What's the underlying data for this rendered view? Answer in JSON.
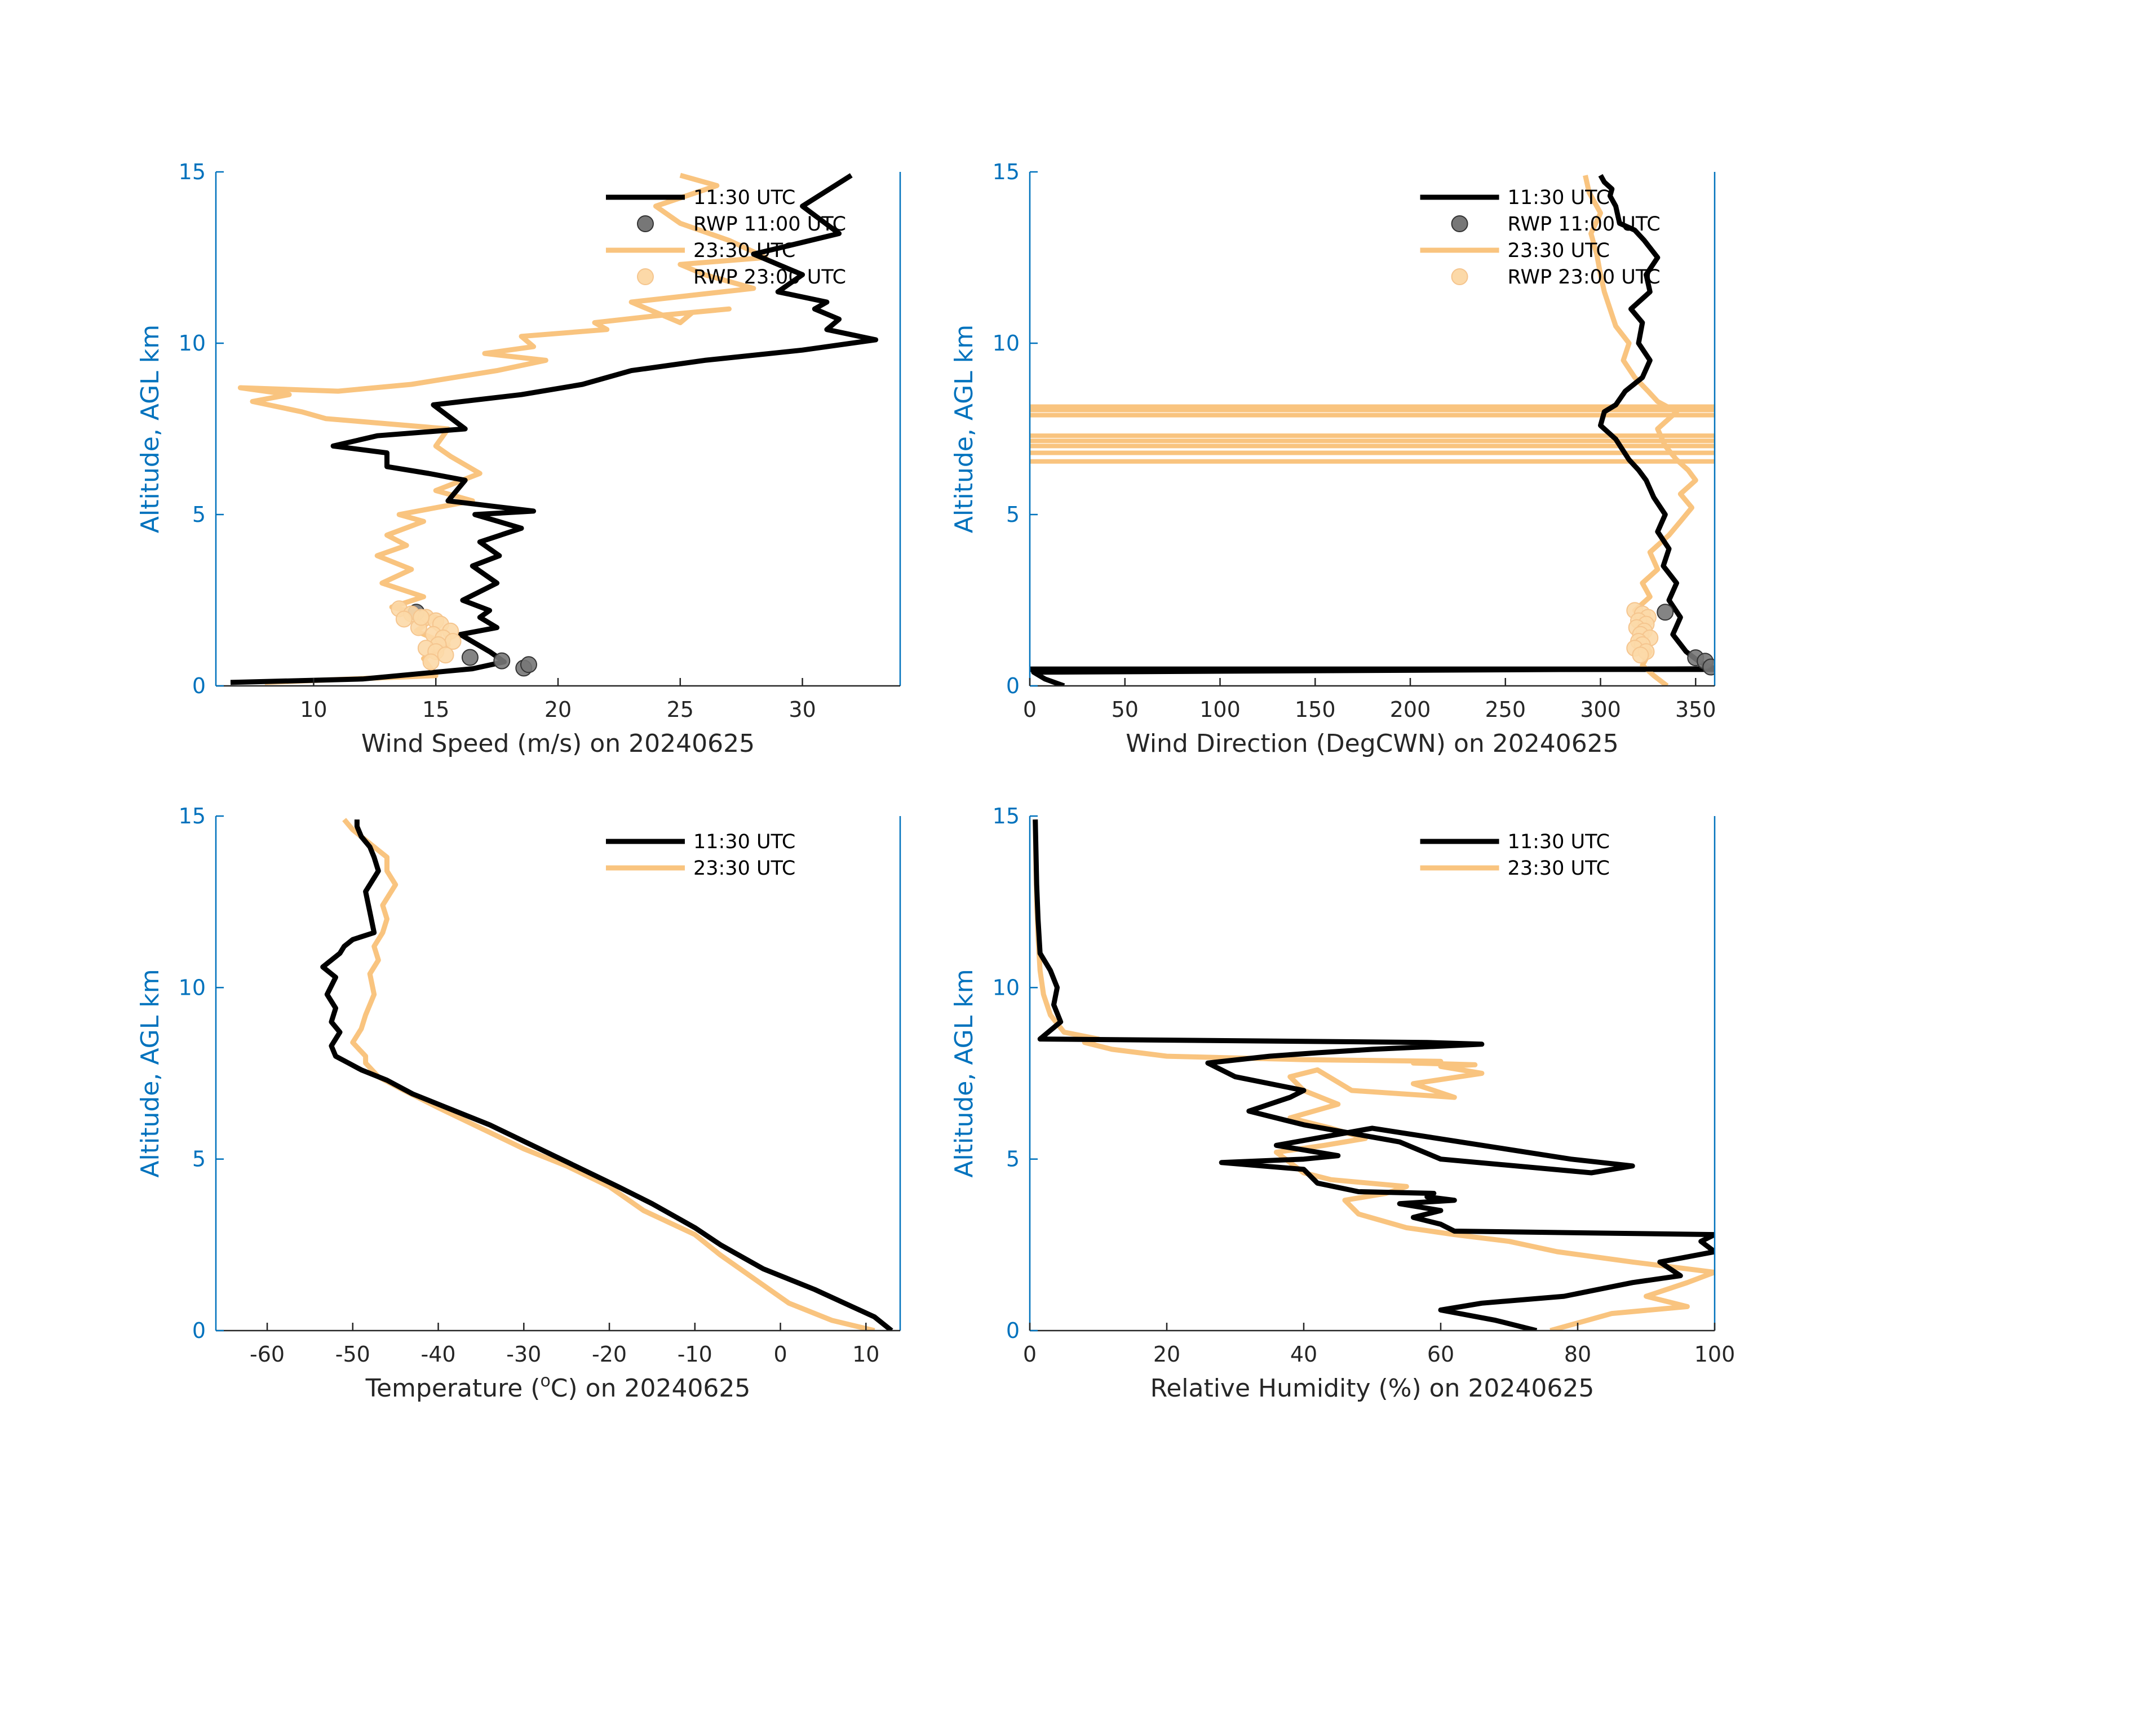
{
  "colors": {
    "black": "#000000",
    "orange": "#F9C47F",
    "axis_blue": "#0072BD",
    "text": "#262626",
    "rwp_black": "#777777",
    "rwp_orange": "#FCD9A8"
  },
  "chart_data": [
    {
      "id": "wind_speed",
      "type": "line",
      "xlabel": "Wind Speed (m/s) on 20240625",
      "ylabel": "Altitude, AGL km",
      "xlim": [
        6,
        34
      ],
      "ylim": [
        0,
        15
      ],
      "xticks": [
        "10",
        "15",
        "20",
        "25",
        "30"
      ],
      "xtick_values": [
        10,
        15,
        20,
        25,
        30
      ],
      "yticks": [
        "0",
        "5",
        "10",
        "15"
      ],
      "ytick_values": [
        0,
        5,
        10,
        15
      ],
      "legend": [
        "11:30 UTC",
        "RWP 11:00 UTC",
        "23:30 UTC",
        "RWP 23:00 UTC"
      ],
      "legend_placement": "top-right",
      "series": [
        {
          "name": "11:30 UTC",
          "color": "black",
          "x": [
            6.6,
            12.0,
            16.5,
            17.8,
            17.2,
            16.0,
            17.5,
            16.8,
            17.2,
            16.1,
            17.5,
            16.5,
            17.6,
            16.8,
            18.5,
            16.6,
            19.0,
            15.5,
            16.2,
            14.7,
            13.0,
            13.0,
            10.8,
            12.6,
            16.2,
            14.9,
            18.5,
            21.0,
            23.0,
            26.0,
            30.0,
            33.0,
            31.0,
            31.5,
            30.5,
            31.0,
            29.0,
            30.0,
            28.0,
            31.5,
            30.0,
            32.0
          ],
          "y": [
            0.1,
            0.2,
            0.5,
            0.7,
            1.0,
            1.5,
            1.7,
            2.0,
            2.2,
            2.5,
            3.0,
            3.5,
            3.8,
            4.2,
            4.6,
            5.0,
            5.1,
            5.4,
            6.0,
            6.2,
            6.4,
            6.8,
            7.0,
            7.3,
            7.5,
            8.2,
            8.5,
            8.8,
            9.2,
            9.5,
            9.8,
            10.1,
            10.4,
            10.7,
            11.0,
            11.2,
            11.5,
            12.0,
            12.6,
            13.2,
            14.0,
            14.9
          ]
        },
        {
          "name": "23:30 UTC",
          "color": "orange",
          "x": [
            8.0,
            15.0,
            14.5,
            15.5,
            14.2,
            15.0,
            13.2,
            14.5,
            12.8,
            14.0,
            12.6,
            13.8,
            13.0,
            14.5,
            13.5,
            16.5,
            15.0,
            16.8,
            15.6,
            15.0,
            15.5,
            10.5,
            9.5,
            7.5,
            9.0,
            7.0,
            11.0,
            14.0,
            17.5,
            19.5,
            17.0,
            19.0,
            18.5,
            22.0,
            21.5,
            24.0,
            27.0,
            25.5,
            25.0,
            23.0,
            28.0,
            26.0,
            25.0,
            28.5,
            27.0,
            25.0,
            24.0,
            26.5,
            25.0
          ],
          "y": [
            0.1,
            0.3,
            0.8,
            1.2,
            1.6,
            2.0,
            2.3,
            2.6,
            3.0,
            3.4,
            3.8,
            4.1,
            4.4,
            4.8,
            5.0,
            5.4,
            5.7,
            6.2,
            6.7,
            7.0,
            7.5,
            7.8,
            8.0,
            8.3,
            8.5,
            8.7,
            8.6,
            8.8,
            9.2,
            9.5,
            9.7,
            9.9,
            10.2,
            10.4,
            10.6,
            10.8,
            11.0,
            10.9,
            10.6,
            11.2,
            11.6,
            12.0,
            12.3,
            12.5,
            13.0,
            13.5,
            14.0,
            14.6,
            14.9
          ]
        }
      ],
      "scatter": [
        {
          "name": "RWP 11:00 UTC",
          "color": "rwp_black",
          "x": [
            14.2,
            16.4,
            17.7,
            18.6,
            18.8
          ],
          "y": [
            2.15,
            0.83,
            0.73,
            0.52,
            0.62
          ]
        },
        {
          "name": "RWP 23:00 UTC",
          "color": "rwp_orange",
          "x": [
            13.5,
            14.0,
            14.6,
            15.0,
            15.2,
            14.3,
            15.6,
            14.9,
            15.3,
            15.7,
            15.1,
            14.6,
            13.7,
            14.4,
            15.0,
            15.4,
            14.8
          ],
          "y": [
            2.25,
            2.1,
            2.0,
            1.9,
            1.8,
            1.7,
            1.6,
            1.5,
            1.4,
            1.3,
            1.2,
            1.1,
            1.95,
            2.0,
            1.0,
            0.9,
            0.7
          ]
        }
      ]
    },
    {
      "id": "wind_direction",
      "type": "line",
      "xlabel": "Wind Direction (DegCWN) on 20240625",
      "ylabel": "Altitude, AGL km",
      "xlim": [
        0,
        360
      ],
      "ylim": [
        0,
        15
      ],
      "xticks": [
        "0",
        "50",
        "100",
        "150",
        "200",
        "250",
        "300",
        "350"
      ],
      "xtick_values": [
        0,
        50,
        100,
        150,
        200,
        250,
        300,
        350
      ],
      "yticks": [
        "0",
        "5",
        "10",
        "15"
      ],
      "ytick_values": [
        0,
        5,
        10,
        15
      ],
      "legend": [
        "11:30 UTC",
        "RWP 11:00 UTC",
        "23:30 UTC",
        "RWP 23:00 UTC"
      ],
      "legend_placement": "top-right",
      "series": [
        {
          "name": "11:30 UTC",
          "color": "black",
          "x": [
            18,
            8,
            2,
            360,
            352,
            345,
            338,
            342,
            336,
            340,
            333,
            336,
            330,
            334,
            328,
            324,
            320,
            315,
            308,
            300,
            302,
            308,
            313,
            322,
            326,
            320,
            322,
            316,
            326,
            324,
            330,
            323,
            318,
            310,
            308,
            305,
            306,
            302,
            300
          ],
          "y": [
            0.0,
            0.2,
            0.4,
            0.5,
            0.7,
            1.0,
            1.5,
            2.0,
            2.5,
            3.0,
            3.5,
            4.0,
            4.5,
            5.0,
            5.5,
            6.0,
            6.3,
            6.6,
            7.2,
            7.6,
            8.0,
            8.2,
            8.6,
            9.0,
            9.5,
            10.0,
            10.6,
            11.0,
            11.5,
            12.0,
            12.5,
            13.0,
            13.3,
            13.5,
            14.0,
            14.3,
            14.5,
            14.7,
            14.9
          ]
        },
        {
          "name": "23:30 UTC",
          "color": "orange",
          "x": [
            335,
            328,
            322,
            326,
            320,
            325,
            318,
            326,
            322,
            330,
            326,
            336,
            342,
            348,
            342,
            350,
            346,
            340,
            334,
            330,
            340,
            330,
            325,
            318,
            312,
            315,
            308,
            305,
            302,
            300,
            298,
            295,
            300,
            294,
            292
          ],
          "y": [
            0.0,
            0.3,
            0.6,
            1.0,
            1.4,
            1.8,
            2.2,
            2.6,
            3.0,
            3.4,
            3.9,
            4.4,
            4.8,
            5.2,
            5.6,
            6.0,
            6.3,
            6.6,
            7.0,
            7.5,
            8.0,
            8.3,
            8.6,
            9.0,
            9.5,
            10.0,
            10.5,
            11.0,
            11.5,
            12.0,
            12.6,
            13.2,
            13.8,
            14.4,
            14.9
          ]
        }
      ],
      "wrap_lines": [
        {
          "name": "11:30 UTC",
          "color": "black",
          "y": [
            0.47,
            0.5
          ]
        },
        {
          "name": "23:30 UTC",
          "color": "orange",
          "y": [
            6.55,
            6.8,
            7.0,
            7.15,
            7.3,
            7.9,
            8.05,
            8.15
          ]
        }
      ],
      "scatter": [
        {
          "name": "RWP 11:00 UTC",
          "color": "rwp_black",
          "x": [
            334,
            350,
            355,
            358
          ],
          "y": [
            2.15,
            0.82,
            0.72,
            0.55
          ]
        },
        {
          "name": "RWP 23:00 UTC",
          "color": "rwp_orange",
          "x": [
            318,
            322,
            325,
            320,
            324,
            319,
            323,
            321,
            326,
            320,
            322,
            318,
            324,
            321
          ],
          "y": [
            2.2,
            2.1,
            2.0,
            1.9,
            1.8,
            1.7,
            1.6,
            1.5,
            1.4,
            1.3,
            1.2,
            1.1,
            1.0,
            0.9
          ]
        }
      ]
    },
    {
      "id": "temperature",
      "type": "line",
      "xlabel_parts": [
        "Temperature (",
        "o",
        "C) on 20240625"
      ],
      "ylabel": "Altitude, AGL km",
      "xlim": [
        -66,
        14
      ],
      "ylim": [
        0,
        15
      ],
      "xticks": [
        "-60",
        "-50",
        "-40",
        "-30",
        "-20",
        "-10",
        "0",
        "10"
      ],
      "xtick_values": [
        -60,
        -50,
        -40,
        -30,
        -20,
        -10,
        0,
        10
      ],
      "yticks": [
        "0",
        "5",
        "10",
        "15"
      ],
      "ytick_values": [
        0,
        5,
        10,
        15
      ],
      "legend": [
        "11:30 UTC",
        "23:30 UTC"
      ],
      "legend_placement": "top-right",
      "series": [
        {
          "name": "11:30 UTC",
          "color": "black",
          "x": [
            13,
            11,
            4,
            -2,
            -7,
            -10,
            -15,
            -19,
            -24,
            -29,
            -34,
            -39,
            -43,
            -46,
            -49,
            -50.5,
            -52,
            -52.5,
            -51.5,
            -52.5,
            -52,
            -53,
            -52,
            -53.5,
            -51.5,
            -51,
            -50,
            -47.5,
            -48,
            -48.5,
            -47,
            -47.5,
            -48,
            -49,
            -49.5,
            -49.5
          ],
          "y": [
            0,
            0.4,
            1.2,
            1.8,
            2.5,
            3.0,
            3.7,
            4.2,
            4.8,
            5.4,
            6.0,
            6.5,
            6.9,
            7.3,
            7.6,
            7.8,
            8.0,
            8.3,
            8.7,
            9.0,
            9.4,
            9.8,
            10.3,
            10.6,
            11.0,
            11.2,
            11.4,
            11.6,
            12.2,
            12.8,
            13.4,
            13.8,
            14.1,
            14.4,
            14.7,
            14.9
          ]
        },
        {
          "name": "23:30 UTC",
          "color": "orange",
          "x": [
            11,
            6,
            1,
            -3,
            -7,
            -10,
            -16,
            -20,
            -25,
            -30,
            -35,
            -40,
            -44,
            -47,
            -48.5,
            -48.5,
            -50,
            -49,
            -48.5,
            -47.5,
            -48,
            -47,
            -47.5,
            -46.5,
            -46,
            -46.5,
            -45,
            -46,
            -46,
            -48,
            -50,
            -51
          ],
          "y": [
            0,
            0.3,
            0.8,
            1.5,
            2.2,
            2.8,
            3.5,
            4.2,
            4.8,
            5.3,
            5.9,
            6.5,
            7.0,
            7.4,
            7.8,
            8.0,
            8.4,
            8.8,
            9.2,
            9.8,
            10.4,
            10.8,
            11.2,
            11.6,
            12.0,
            12.4,
            13.0,
            13.4,
            13.8,
            14.2,
            14.6,
            14.9
          ]
        }
      ]
    },
    {
      "id": "relative_humidity",
      "type": "line",
      "xlabel": "Relative Humidity (%) on 20240625",
      "ylabel": "Altitude, AGL km",
      "xlim": [
        0,
        100
      ],
      "ylim": [
        0,
        15
      ],
      "xticks": [
        "0",
        "20",
        "40",
        "60",
        "80",
        "100"
      ],
      "xtick_values": [
        0,
        20,
        40,
        60,
        80,
        100
      ],
      "yticks": [
        "0",
        "5",
        "10",
        "15"
      ],
      "ytick_values": [
        0,
        5,
        10,
        15
      ],
      "legend": [
        "11:30 UTC",
        "23:30 UTC"
      ],
      "legend_placement": "top-right",
      "series": [
        {
          "name": "11:30 UTC",
          "color": "black",
          "x": [
            74,
            68,
            60,
            66,
            78,
            88,
            95,
            92,
            100,
            98,
            100,
            62,
            60,
            56,
            60,
            54,
            62,
            58,
            59,
            48,
            42,
            40,
            28,
            40,
            45,
            36,
            50,
            79,
            88,
            82,
            60,
            54,
            40,
            32,
            38,
            40,
            30,
            26,
            35,
            42,
            50,
            66,
            58,
            1.5,
            4.5,
            3.5,
            4,
            3,
            1.5,
            1.2,
            1.0,
            0.9,
            0.8
          ],
          "y": [
            0,
            0.3,
            0.6,
            0.8,
            1.0,
            1.4,
            1.6,
            2.0,
            2.3,
            2.6,
            2.8,
            2.9,
            3.1,
            3.3,
            3.5,
            3.7,
            3.8,
            3.9,
            4.0,
            4.05,
            4.3,
            4.7,
            4.9,
            5.0,
            5.1,
            5.4,
            5.9,
            5.0,
            4.8,
            4.6,
            5.0,
            5.5,
            6.0,
            6.4,
            6.8,
            7.0,
            7.4,
            7.8,
            8.0,
            8.1,
            8.2,
            8.35,
            8.4,
            8.5,
            9.0,
            9.5,
            10.0,
            10.5,
            11.0,
            12.0,
            13.0,
            14.0,
            14.9
          ]
        },
        {
          "name": "23:30 UTC",
          "color": "orange",
          "x": [
            76,
            85,
            96,
            90,
            96,
            100,
            88,
            77,
            70,
            62,
            55,
            48,
            46,
            52,
            55,
            44,
            40,
            38,
            36,
            43,
            49,
            44,
            38,
            45,
            40,
            38,
            42,
            47,
            62,
            56,
            66,
            60,
            65,
            56,
            60,
            40,
            20,
            12,
            8,
            10,
            5,
            3,
            2,
            1.5,
            1.2,
            1.0,
            0.9,
            0.8
          ],
          "y": [
            0,
            0.5,
            0.7,
            1.0,
            1.4,
            1.7,
            2.0,
            2.3,
            2.6,
            2.8,
            3.0,
            3.4,
            3.8,
            4.0,
            4.2,
            4.4,
            4.6,
            4.9,
            5.2,
            5.4,
            5.6,
            5.9,
            6.2,
            6.6,
            7.0,
            7.4,
            7.6,
            7.0,
            6.8,
            7.2,
            7.5,
            7.7,
            7.75,
            7.8,
            7.85,
            7.9,
            8.0,
            8.2,
            8.4,
            8.5,
            8.7,
            9.2,
            9.8,
            10.5,
            11.5,
            12.5,
            13.5,
            14.9
          ]
        }
      ]
    }
  ]
}
